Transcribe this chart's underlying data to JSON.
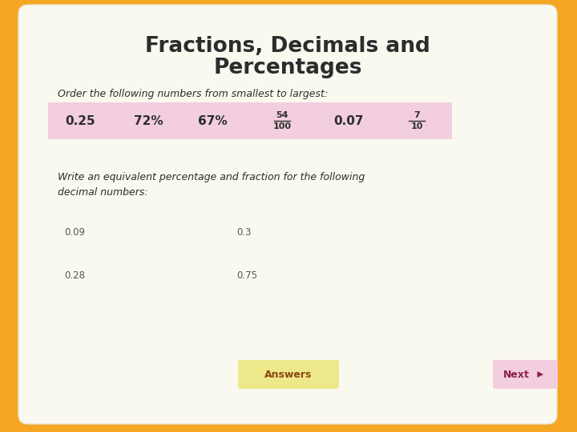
{
  "bg_color": "#F5A623",
  "card_color": "#FAF9F0",
  "title_line1": "Fractions, Decimals and",
  "title_line2": "Percentages",
  "title_color": "#2C2C2C",
  "subtitle": "Order the following numbers from smallest to largest:",
  "subtitle_color": "#2C2C2C",
  "row_bg": "#F2CEDE",
  "row_fractions": [
    {
      "type": "plain",
      "text": "0.25"
    },
    {
      "type": "plain",
      "text": "72%"
    },
    {
      "type": "plain",
      "text": "67%"
    },
    {
      "type": "fraction",
      "num": "54",
      "den": "100"
    },
    {
      "type": "plain",
      "text": "0.07"
    },
    {
      "type": "fraction",
      "num": "7",
      "den": "10"
    }
  ],
  "row_text_color": "#2C2C2C",
  "second_heading": "Write an equivalent percentage and fraction for the following\ndecimal numbers:",
  "second_heading_color": "#2C2C2C",
  "decimals_left": [
    "0.09",
    "0.28"
  ],
  "decimals_right": [
    "0.3",
    "0.75"
  ],
  "decimals_color": "#555555",
  "answers_btn_color": "#EDE98A",
  "answers_btn_text": "Answers",
  "answers_btn_text_color": "#8B4513",
  "next_btn_color": "#F2CEDE",
  "next_btn_text": "Next",
  "next_btn_text_color": "#8B2050",
  "arrow_color": "#8B2050"
}
